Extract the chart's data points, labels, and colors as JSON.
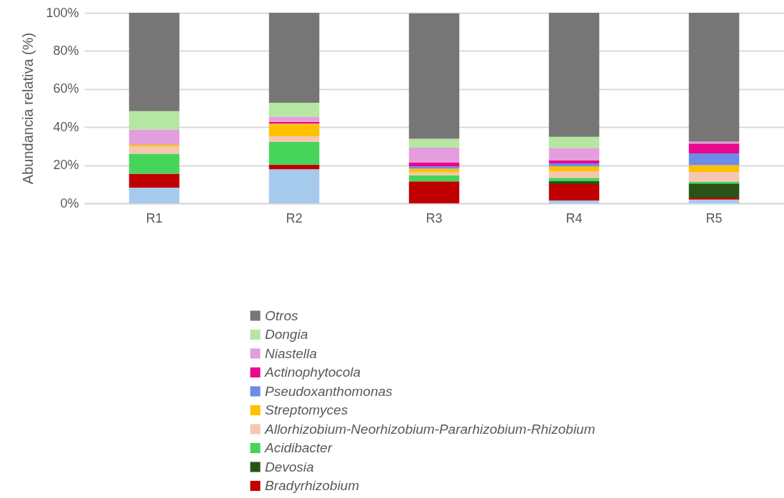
{
  "chart_data": {
    "type": "bar",
    "stacked": true,
    "ylabel": "Abundancia relativa (%)",
    "categories": [
      "R1",
      "R2",
      "R3",
      "R4",
      "R5"
    ],
    "ylim": [
      0,
      100
    ],
    "yticks": [
      {
        "value": 0,
        "label": "0%"
      },
      {
        "value": 20,
        "label": "20%"
      },
      {
        "value": 40,
        "label": "40%"
      },
      {
        "value": 60,
        "label": "60%"
      },
      {
        "value": 80,
        "label": "80%"
      },
      {
        "value": 100,
        "label": "100%"
      }
    ],
    "grid": "y",
    "legend": "bottom",
    "series": [
      {
        "color": "#a6caec",
        "values": [
          8.2,
          17.9,
          null,
          1.5,
          2.0
        ]
      },
      {
        "name": "Bradyrhizobium",
        "color": "#c00000",
        "values": [
          7.3,
          2.4,
          11.5,
          8.6,
          1.0
        ]
      },
      {
        "name": "Devosia",
        "color": "#275317",
        "values": [
          0,
          0,
          0,
          1.5,
          7.4
        ]
      },
      {
        "name": "Acidibacter",
        "color": "#47d45a",
        "values": [
          10.5,
          11.9,
          3.3,
          1.8,
          1.0
        ]
      },
      {
        "name": "Allorhizobium-Neorhizobium-Pararhizobium-Rhizobium",
        "color": "#f6c7b0",
        "values": [
          3.8,
          3.0,
          1.4,
          3.4,
          5.1
        ]
      },
      {
        "name": "Streptomyces",
        "color": "#ffc000",
        "values": [
          0.9,
          6.7,
          2.0,
          2.6,
          3.5
        ]
      },
      {
        "name": "Pseudoxanthomonas",
        "color": "#6d8ce6",
        "values": [
          0,
          0,
          1.2,
          1.6,
          6.2
        ]
      },
      {
        "name": "Actinophytocola",
        "color": "#e8088c",
        "values": [
          0,
          0.9,
          2.1,
          1.5,
          5.2
        ]
      },
      {
        "name": "Niastella",
        "color": "#e49edd",
        "values": [
          8.0,
          2.7,
          7.7,
          6.6,
          1.0
        ]
      },
      {
        "name": "Dongia",
        "color": "#b5e6a2",
        "values": [
          9.7,
          7.3,
          4.7,
          5.8,
          0
        ]
      },
      {
        "name": "Otros",
        "color": "#767676",
        "values": [
          51.6,
          47.2,
          65.8,
          65.1,
          67.6
        ]
      }
    ]
  }
}
